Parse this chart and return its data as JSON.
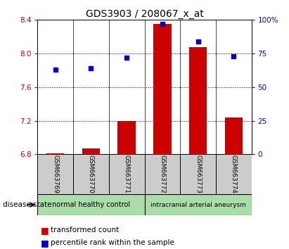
{
  "title": "GDS3903 / 208067_x_at",
  "samples": [
    "GSM663769",
    "GSM663770",
    "GSM663771",
    "GSM663772",
    "GSM663773",
    "GSM663774"
  ],
  "transformed_count": [
    6.81,
    6.87,
    7.2,
    8.35,
    8.08,
    7.24
  ],
  "percentile_rank": [
    63,
    64,
    72,
    97,
    84,
    73
  ],
  "ylim_left": [
    6.8,
    8.4
  ],
  "ylim_right": [
    0,
    100
  ],
  "yticks_left": [
    6.8,
    7.2,
    7.6,
    8.0,
    8.4
  ],
  "yticks_right": [
    0,
    25,
    50,
    75,
    100
  ],
  "ytick_right_labels": [
    "0",
    "25",
    "50",
    "75",
    "100%"
  ],
  "bar_color": "#cc0000",
  "dot_color": "#0000cc",
  "group1_label": "normal healthy control",
  "group2_label": "intracranial arterial aneurysm",
  "group1_color": "#aaddaa",
  "group2_color": "#aaddaa",
  "group1_samples": [
    0,
    1,
    2
  ],
  "group2_samples": [
    3,
    4,
    5
  ],
  "disease_state_label": "disease state",
  "legend_bar_label": "transformed count",
  "legend_dot_label": "percentile rank within the sample",
  "sample_box_color": "#cccccc",
  "plot_bg_color": "#ffffff",
  "grid_color": "#000000",
  "grid_yticks": [
    7.2,
    7.6,
    8.0
  ],
  "title_fontsize": 10,
  "tick_fontsize": 7.5,
  "sample_fontsize": 6.5,
  "group_fontsize": 7,
  "legend_fontsize": 7.5,
  "bar_width": 0.5
}
